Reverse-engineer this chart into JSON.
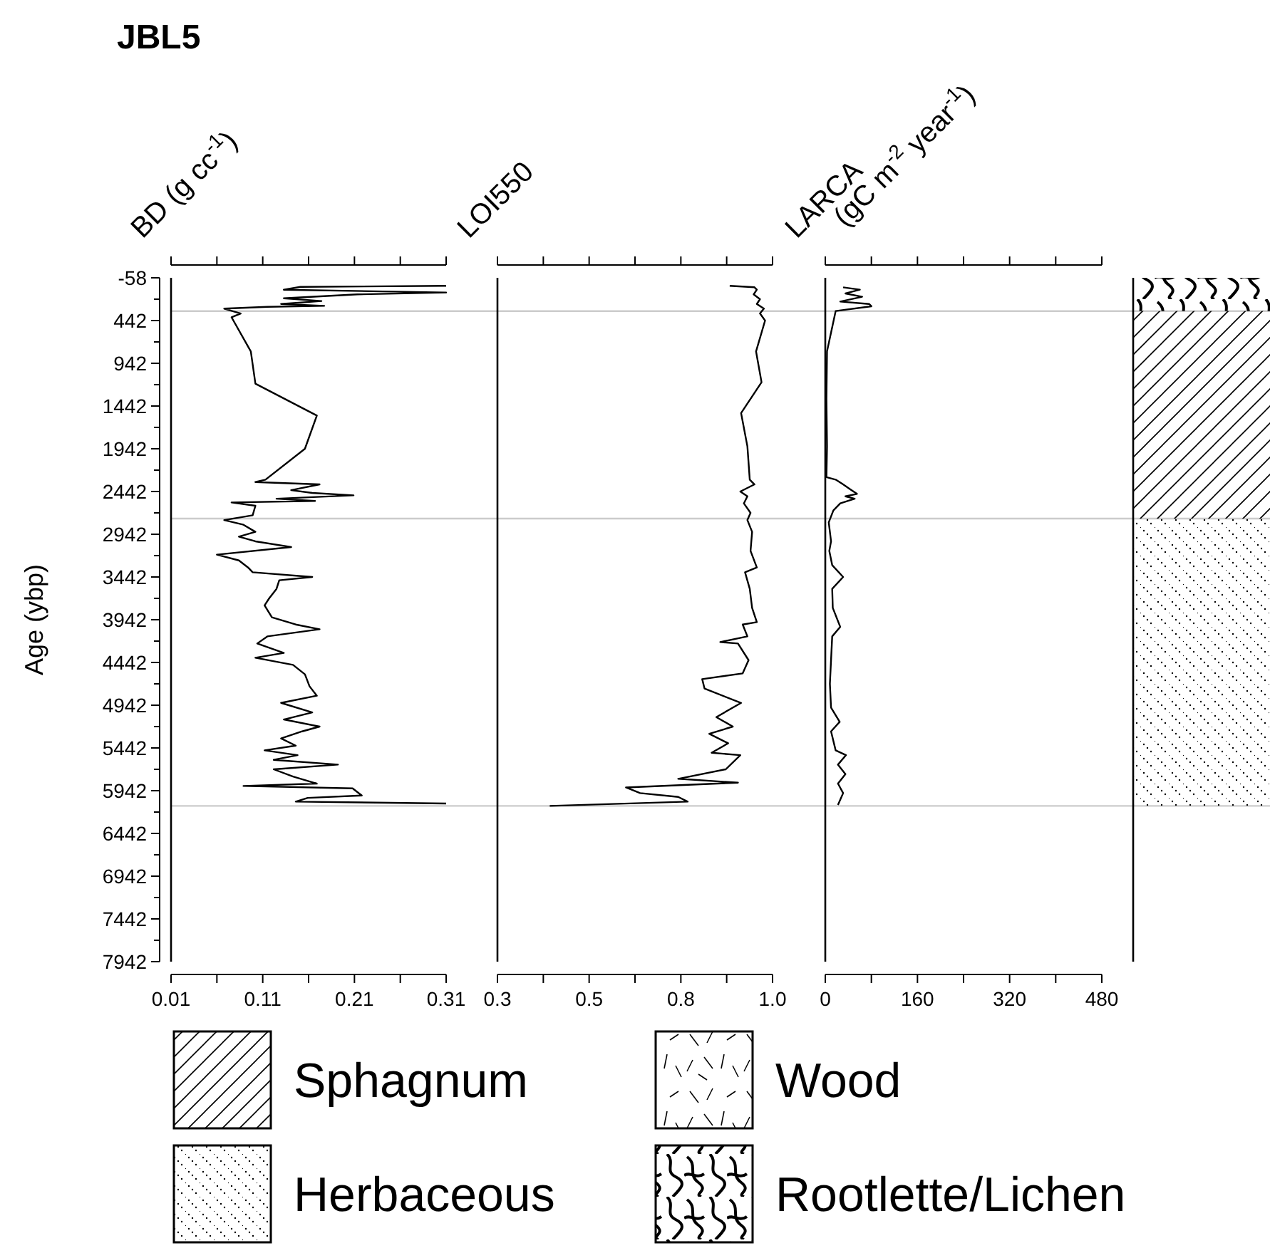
{
  "chart_data": [
    {
      "type": "line",
      "title": "JBL5",
      "xlabel": "BD (g cc$^{-1}$)",
      "ylabel": "Age (ybp)",
      "xlim": [
        0.01,
        0.31
      ],
      "xticks": [
        0.01,
        {
          "value": 0.06,
          "label": null
        },
        0.11,
        {
          "value": 0.16,
          "label": null
        },
        0.21,
        {
          "value": 0.26,
          "label": null
        },
        0.31
      ],
      "ylim": [
        7942,
        -58
      ],
      "yticks": [
        -58,
        {
          "value": 192,
          "label": null
        },
        442,
        {
          "value": 692,
          "label": null
        },
        942,
        {
          "value": 1192,
          "label": null
        },
        1442,
        {
          "value": 1692,
          "label": null
        },
        1942,
        {
          "value": 2192,
          "label": null
        },
        2442,
        {
          "value": 2692,
          "label": null
        },
        2942,
        {
          "value": 3192,
          "label": null
        },
        3442,
        {
          "value": 3692,
          "label": null
        },
        3942,
        {
          "value": 4192,
          "label": null
        },
        4442,
        {
          "value": 4692,
          "label": null
        },
        4942,
        {
          "value": 5192,
          "label": null
        },
        5442,
        {
          "value": 5692,
          "label": null
        },
        5942,
        {
          "value": 6192,
          "label": null
        },
        6442,
        {
          "value": 6692,
          "label": null
        },
        6942,
        {
          "value": 7192,
          "label": null
        },
        7442,
        {
          "value": 7692,
          "label": null
        },
        7942
      ],
      "series": [
        {
          "color": "#000000",
          "x": [
            0.31,
            0.151,
            0.133,
            0.31,
            0.213,
            0.133,
            0.174,
            0.13,
            0.177,
            0.115,
            0.068,
            0.086,
            0.076,
            0.078,
            0.097,
            0.102,
            0.169,
            0.156,
            0.113,
            0.102,
            0.172,
            0.141,
            0.164,
            0.209,
            0.125,
            0.167,
            0.076,
            0.102,
            0.099,
            0.068,
            0.089,
            0.102,
            0.084,
            0.102,
            0.141,
            0.06,
            0.084,
            0.094,
            0.099,
            0.164,
            0.128,
            0.125,
            0.117,
            0.112,
            0.12,
            0.146,
            0.172,
            0.115,
            0.104,
            0.133,
            0.102,
            0.143,
            0.156,
            0.161,
            0.169,
            0.13,
            0.164,
            0.133,
            0.172,
            0.153,
            0.13,
            0.146,
            0.112,
            0.148,
            0.122,
            0.192,
            0.122,
            0.143,
            0.169,
            0.089,
            0.208,
            0.218,
            0.159,
            0.146,
            0.31
          ],
          "values": [
            36,
            48,
            81,
            114,
            136,
            181,
            214,
            248,
            270,
            281,
            303,
            359,
            403,
            442,
            803,
            1181,
            1553,
            1942,
            2303,
            2331,
            2359,
            2426,
            2459,
            2487,
            2526,
            2553,
            2570,
            2609,
            2720,
            2776,
            2831,
            2914,
            2970,
            3025,
            3092,
            3181,
            3248,
            3331,
            3387,
            3442,
            3481,
            3581,
            3692,
            3775,
            3914,
            3998,
            4053,
            4137,
            4220,
            4331,
            4387,
            4470,
            4581,
            4720,
            4831,
            4915,
            5026,
            5109,
            5192,
            5248,
            5331,
            5415,
            5470,
            5526,
            5581,
            5637,
            5692,
            5776,
            5859,
            5887,
            5915,
            5998,
            6026,
            6070,
            6092
          ]
        }
      ],
      "ref_lines": [
        {
          "axis": "y",
          "value": 331,
          "color": "#cccccc"
        },
        {
          "axis": "y",
          "value": 2759,
          "color": "#cccccc"
        },
        {
          "axis": "y",
          "value": 6120,
          "color": "#cccccc"
        }
      ]
    },
    {
      "type": "line",
      "xlabel": "LOI550",
      "tick_labels": "x",
      "xlim": [
        0.3,
        1.0
      ],
      "xticks": [
        0.3,
        {
          "value": 0.4167,
          "label": null
        },
        {
          "value": 0.5333,
          "label": "0.5"
        },
        {
          "value": 0.65,
          "label": null
        },
        {
          "value": 0.7667,
          "label": "0.8"
        },
        {
          "value": 0.8833,
          "label": null
        },
        {
          "value": 1.0,
          "label": "1.0"
        }
      ],
      "ylim": [
        7942,
        -58
      ],
      "series": [
        {
          "color": "#000000",
          "x": [
            0.891,
            0.954,
            0.96,
            0.952,
            0.968,
            0.96,
            0.978,
            0.968,
            0.981,
            0.958,
            0.972,
            0.92,
            0.936,
            0.942,
            0.954,
            0.918,
            0.936,
            0.927,
            0.944,
            0.936,
            0.948,
            0.944,
            0.96,
            0.93,
            0.942,
            0.948,
            0.96,
            0.924,
            0.936,
            0.867,
            0.912,
            0.939,
            0.924,
            0.821,
            0.827,
            0.92,
            0.857,
            0.899,
            0.839,
            0.887,
            0.845,
            0.918,
            0.881,
            0.76,
            0.912,
            0.627,
            0.663,
            0.76,
            0.784,
            0.433
          ],
          "values": [
            36,
            53,
            81,
            136,
            192,
            248,
            303,
            359,
            442,
            803,
            1164,
            1525,
            1914,
            2303,
            2359,
            2442,
            2498,
            2581,
            2692,
            2776,
            2914,
            3137,
            3331,
            3387,
            3581,
            3803,
            3970,
            3998,
            4137,
            4203,
            4220,
            4415,
            4570,
            4637,
            4748,
            4915,
            5081,
            5192,
            5276,
            5387,
            5498,
            5526,
            5692,
            5803,
            5848,
            5904,
            5970,
            6015,
            6070,
            6120
          ]
        }
      ]
    },
    {
      "type": "line",
      "xlabel": "LARCA\n(gC m$^{-2}$ year$^{-1}$)",
      "tick_labels": "x",
      "xlim": [
        0,
        480
      ],
      "xticks": [
        0,
        {
          "value": 80,
          "label": null
        },
        160,
        {
          "value": 240,
          "label": null
        },
        320,
        {
          "value": 400,
          "label": null
        },
        480
      ],
      "ylim": [
        7942,
        -58
      ],
      "series": [
        {
          "color": "#000000",
          "x": [
            31,
            60,
            35,
            64,
            26,
            76,
            80,
            18,
            3,
            2,
            3,
            2,
            18,
            31,
            43,
            55,
            35,
            51,
            26,
            14,
            6,
            10,
            7,
            12,
            31,
            12,
            13,
            26,
            12,
            10,
            8,
            10,
            25,
            10,
            18,
            36,
            22,
            35,
            22,
            31,
            22
          ],
          "values": [
            53,
            81,
            125,
            164,
            220,
            248,
            275,
            331,
            803,
            1359,
            1914,
            2275,
            2303,
            2359,
            2414,
            2470,
            2498,
            2526,
            2581,
            2664,
            2803,
            3025,
            3137,
            3303,
            3442,
            3581,
            3803,
            4026,
            4137,
            4415,
            4692,
            4970,
            5137,
            5248,
            5470,
            5526,
            5637,
            5748,
            5859,
            5970,
            6109
          ]
        }
      ]
    },
    {
      "type": "other",
      "annotations": [
        "Sphagnum",
        "Wood",
        "Herbaceous",
        "Rootlette/Lichen"
      ]
    }
  ]
}
